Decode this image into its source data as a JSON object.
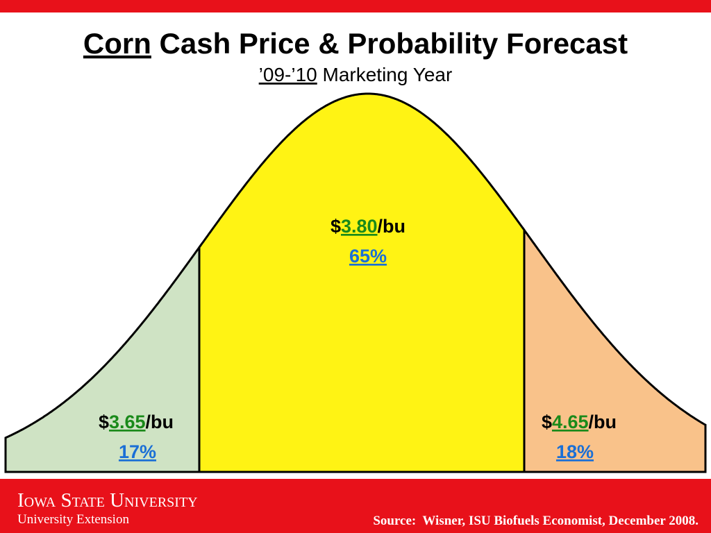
{
  "header": {
    "title_highlight": "Corn",
    "title_rest": " Cash Price & Probability Forecast",
    "subtitle_highlight": "’09-’10",
    "subtitle_rest": " Marketing Year"
  },
  "regions": [
    {
      "currency": "$",
      "price": "3.65",
      "unit": "/bu",
      "probability": "17%"
    },
    {
      "currency": "$",
      "price": "3.80",
      "unit": "/bu",
      "probability": "65%"
    },
    {
      "currency": "$",
      "price": "4.65",
      "unit": "/bu",
      "probability": "18%"
    }
  ],
  "footer": {
    "university": "Iowa State University",
    "department": "University Extension",
    "source": "Source:  Wisner, ISU Biofuels Economist, December 2008."
  }
}
